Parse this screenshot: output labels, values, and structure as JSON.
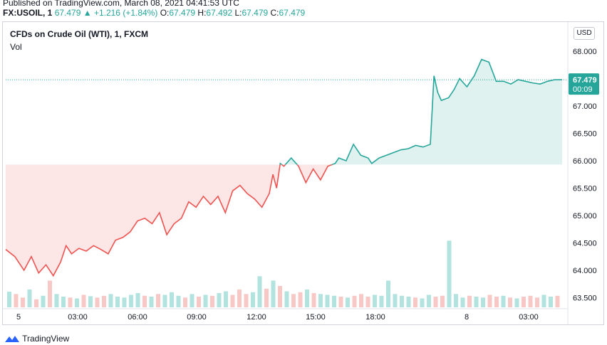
{
  "header": {
    "published": "Published on TradingView.com, March 08, 2021 04:41:53 UTC",
    "symbol": "FX:USOIL, 1",
    "last": "67.479",
    "change": "▲ +1.216 (+1.84%)",
    "o_label": "O:",
    "o": "67.479",
    "h_label": "H:",
    "h": "67.492",
    "l_label": "L:",
    "l": "67.479",
    "c_label": "C:",
    "c": "67.479"
  },
  "legend": {
    "title": "CFDs on Crude Oil (WTI), 1, FXCM",
    "vol": "Vol"
  },
  "currency": "USD",
  "price_tag": {
    "price": "67.479",
    "countdown": "00:09"
  },
  "footer": {
    "brand": "TradingView"
  },
  "colors": {
    "up": "#26a69a",
    "down": "#ef5350",
    "fill_down": "#fde6e6",
    "fill_up": "#dff2ef",
    "baseline": "#26a69a"
  },
  "chart_data": {
    "type": "area",
    "title": "CFDs on Crude Oil (WTI), 1, FXCM",
    "ylim": [
      63.35,
      68.35
    ],
    "y_ticks": [
      "63.500",
      "64.000",
      "64.500",
      "65.000",
      "65.500",
      "66.000",
      "66.500",
      "67.000",
      "67.500",
      "68.000"
    ],
    "x_tick_labels": [
      "5",
      "03:00",
      "06:00",
      "09:00",
      "12:00",
      "15:00",
      "18:00",
      "8",
      "03:00"
    ],
    "baseline_value": 65.93,
    "last_value": 67.479,
    "series": [
      {
        "x": [
          0,
          0.5,
          1,
          1.4,
          1.8,
          2.2,
          2.6,
          3,
          3.3,
          3.6,
          4,
          4.4,
          4.8,
          5.2,
          5.6,
          6,
          6.4,
          6.8,
          7.2,
          7.6,
          8,
          8.4,
          8.8,
          9.2,
          9.6,
          10,
          10.4,
          10.8,
          11.2,
          11.6,
          12,
          12.4,
          12.8,
          13.2,
          13.6,
          14,
          14.4,
          14.6,
          14.8,
          15,
          15.2,
          15.6,
          16,
          16.4,
          16.8,
          17.2,
          17.6,
          18,
          18.2,
          18.6,
          19,
          19.4,
          19.8,
          20,
          20.4,
          20.8,
          21.2,
          21.6,
          22,
          22.4,
          22.8,
          23.2,
          23.4,
          23.6,
          23.8,
          24.2,
          24.5,
          24.8,
          25.2,
          25.6,
          26,
          26.4,
          26.8,
          27.2,
          27.6,
          28,
          28.4,
          28.8,
          29.2,
          29.6,
          30,
          30.4
        ],
        "y": [
          64.38,
          64.25,
          64.0,
          64.25,
          63.95,
          64.1,
          63.9,
          64.15,
          64.45,
          64.3,
          64.4,
          64.35,
          64.45,
          64.38,
          64.3,
          64.55,
          64.6,
          64.7,
          64.9,
          64.95,
          64.85,
          65.05,
          64.65,
          64.85,
          64.95,
          65.25,
          65.15,
          65.35,
          65.2,
          65.35,
          65.05,
          65.45,
          65.55,
          65.4,
          65.3,
          65.15,
          65.4,
          65.75,
          65.5,
          65.95,
          65.9,
          66.05,
          65.9,
          65.6,
          65.85,
          65.65,
          65.9,
          65.95,
          66.05,
          66.0,
          66.3,
          66.1,
          66.05,
          65.95,
          66.05,
          66.1,
          66.15,
          66.2,
          66.22,
          66.28,
          66.25,
          66.3,
          67.55,
          67.25,
          67.1,
          67.15,
          67.3,
          67.5,
          67.35,
          67.55,
          67.85,
          67.8,
          67.45,
          67.45,
          67.4,
          67.48,
          67.45,
          67.42,
          67.4,
          67.45,
          67.48,
          67.479
        ]
      }
    ],
    "volume": [
      35,
      30,
      22,
      40,
      18,
      26,
      60,
      30,
      24,
      22,
      20,
      28,
      25,
      22,
      26,
      30,
      24,
      22,
      28,
      32,
      26,
      24,
      30,
      28,
      34,
      26,
      22,
      30,
      24,
      28,
      26,
      32,
      36,
      28,
      40,
      30,
      34,
      70,
      42,
      60,
      48,
      36,
      30,
      34,
      40,
      32,
      30,
      28,
      26,
      24,
      22,
      26,
      30,
      24,
      28,
      26,
      60,
      30,
      26,
      24,
      22,
      20,
      28,
      24,
      26,
      150,
      30,
      22,
      26,
      24,
      22,
      28,
      24,
      26,
      22,
      20,
      24,
      26,
      22,
      28,
      24,
      26
    ]
  }
}
